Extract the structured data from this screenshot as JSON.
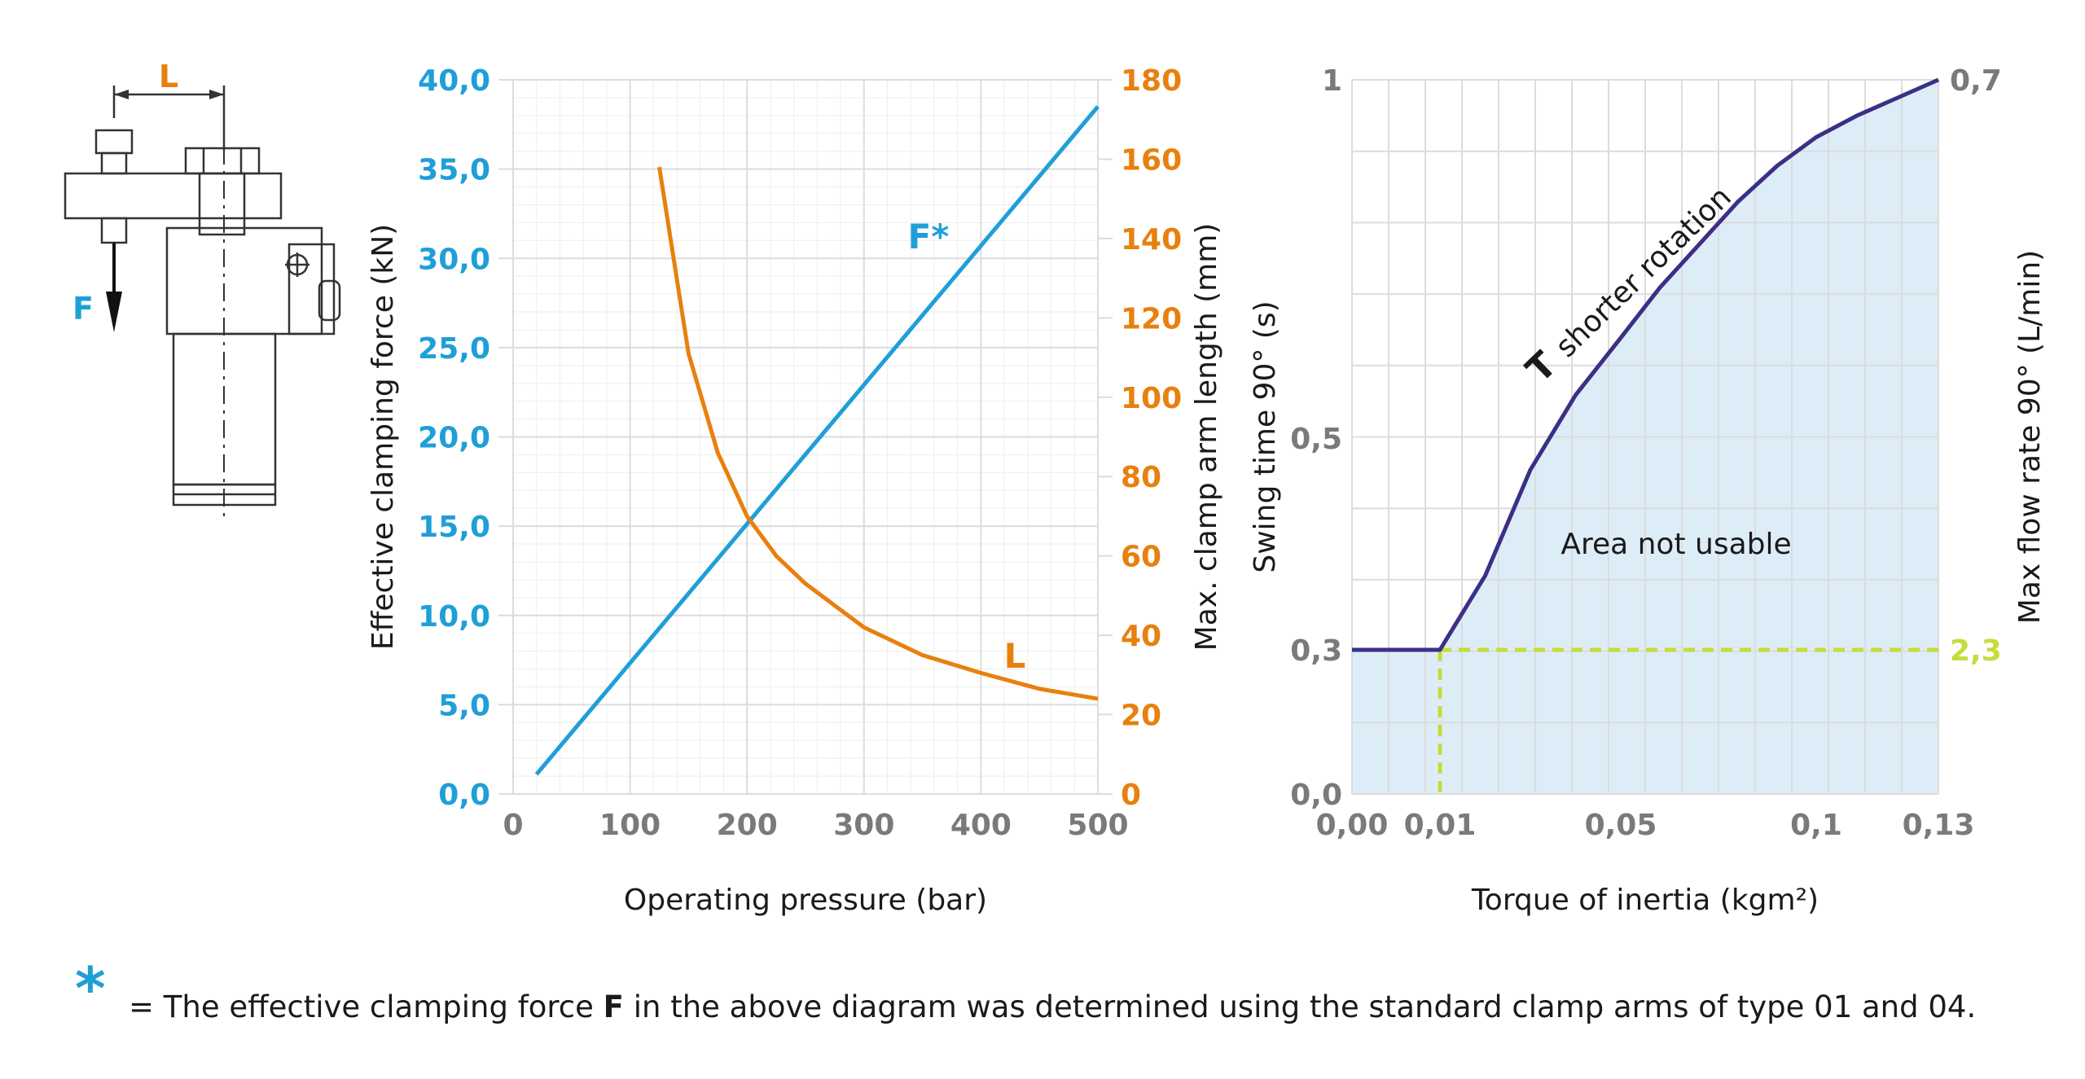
{
  "colors": {
    "force": "#1f9fd8",
    "length": "#e8800e",
    "swing": "#3b2f86",
    "dash": "#c6dc3a",
    "area": "#dcedf8",
    "grid": "#dcdcdc",
    "gridMinor": "#eeeeee",
    "tick": "#7a7a7a",
    "text": "#1a1a1a"
  },
  "illustration": {
    "dim_label": "L",
    "force_label": "F"
  },
  "chart_data": [
    {
      "type": "line",
      "xlabel": "Operating pressure (bar)",
      "ylabel_left": "Effective clamping force (kN)",
      "ylabel_right": "Max. clamp arm length (mm)",
      "xlim": [
        0,
        500
      ],
      "ylim_left": [
        0,
        40
      ],
      "ylim_right": [
        0,
        180
      ],
      "x_ticks": [
        "0",
        "100",
        "200",
        "300",
        "400",
        "500"
      ],
      "y_ticks_left": [
        "0,0",
        "5,0",
        "10,0",
        "15,0",
        "20,0",
        "25,0",
        "30,0",
        "35,0",
        "40,0"
      ],
      "y_ticks_right": [
        "0",
        "20",
        "40",
        "60",
        "80",
        "100",
        "120",
        "140",
        "160",
        "180"
      ],
      "grid": true,
      "series": [
        {
          "name": "F*",
          "axis": "left",
          "x": [
            20,
            500
          ],
          "y": [
            1.1,
            38.5
          ]
        },
        {
          "name": "L",
          "axis": "right",
          "x": [
            125,
            150,
            175,
            200,
            225,
            250,
            275,
            300,
            350,
            400,
            450,
            500
          ],
          "y": [
            158,
            111,
            86,
            70,
            60,
            53,
            47.5,
            42,
            35,
            30.5,
            26.5,
            24
          ]
        }
      ]
    },
    {
      "type": "area",
      "xlabel": "Torque of inertia (kgm²)",
      "ylabel_left": "Swing time 90° (s)",
      "ylabel_right": "Max flow rate 90° (L/min)",
      "x_ticks": [
        "0,00",
        "0,01",
        "0,05",
        "0,1",
        "0,13"
      ],
      "y_ticks_left": [
        "0,0",
        "0,3",
        "0,5",
        "1"
      ],
      "y_ticks_right": [
        "2,3",
        "0,7"
      ],
      "grid": true,
      "curve_label_symbol": "T",
      "curve_label": "shorter rotation",
      "area_label": "Area not usable",
      "series": [
        {
          "name": "T",
          "x": [
            0.0,
            0.01,
            0.02,
            0.03,
            0.04,
            0.05,
            0.06,
            0.07,
            0.08,
            0.09,
            0.1,
            0.11,
            0.12,
            0.13
          ],
          "y": [
            0.3,
            0.3,
            0.37,
            0.47,
            0.56,
            0.64,
            0.71,
            0.77,
            0.83,
            0.88,
            0.92,
            0.95,
            0.975,
            1.0
          ]
        }
      ],
      "reference": {
        "x": 0.01,
        "y": 0.3,
        "right_value": "2,3"
      }
    }
  ],
  "footnote": {
    "symbol": "*",
    "prefix": "= The effective clamping force ",
    "bold": "F",
    "suffix": " in the above diagram was determined using the standard clamp arms of type 01 and 04."
  }
}
